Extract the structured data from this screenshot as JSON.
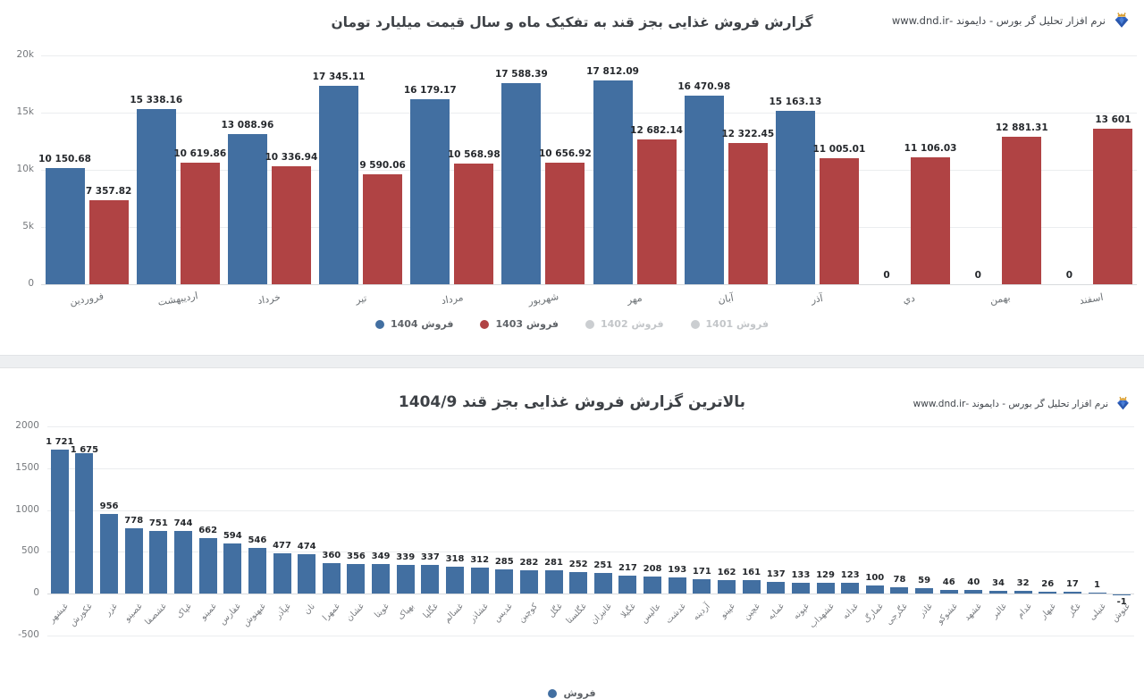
{
  "header": {
    "brand_text": "نرم افزار تحلیل گر بورس - دایموند -www.dnd.ir",
    "logo_icon": "diamond-crown-logo",
    "logo_colors": {
      "diamond": "#2f63c4",
      "crown": "#d79c2e"
    }
  },
  "chart_data": [
    {
      "type": "bar",
      "title": "گزارش فروش غذایی بجز قند به تفکیک ماه و سال قیمت میلیارد تومان",
      "categories": [
        "فروردین",
        "اردیبهشت",
        "خرداد",
        "تیر",
        "مرداد",
        "شهریور",
        "مهر",
        "آبان",
        "آذر",
        "دي",
        "بهمن",
        "اسفند"
      ],
      "series": [
        {
          "name": "فروش 1404",
          "color": "#426fa1",
          "values": [
            10150.68,
            15338.16,
            13088.96,
            17345.11,
            16179.17,
            17588.39,
            17812.09,
            16470.98,
            15163.13,
            0,
            0,
            0
          ],
          "labels": [
            "10 150.68",
            "15 338.16",
            "13 088.96",
            "17 345.11",
            "16 179.17",
            "17 588.39",
            "17 812.09",
            "16 470.98",
            "15 163.13",
            "0",
            "0",
            "0"
          ]
        },
        {
          "name": "فروش 1403",
          "color": "#b04344",
          "values": [
            7357.82,
            10619.86,
            10336.94,
            9590.06,
            10568.98,
            10656.92,
            12682.14,
            12322.45,
            11005.01,
            11106.03,
            12881.31,
            13601
          ],
          "labels": [
            "7 357.82",
            "10 619.86",
            "10 336.94",
            "9 590.06",
            "10 568.98",
            "10 656.92",
            "12 682.14",
            "12 322.45",
            "11 005.01",
            "11 106.03",
            "12 881.31",
            "13 601"
          ]
        }
      ],
      "legend": [
        {
          "label": "فروش 1404",
          "color": "#426fa1",
          "active": true
        },
        {
          "label": "فروش 1403",
          "color": "#b04344",
          "active": true
        },
        {
          "label": "فروش 1402",
          "color": "#cbced1",
          "active": false
        },
        {
          "label": "فروش 1401",
          "color": "#cbced1",
          "active": false
        }
      ],
      "y_ticks": [
        {
          "label": "20k",
          "value": 20000
        },
        {
          "label": "15k",
          "value": 15000
        },
        {
          "label": "10k",
          "value": 10000
        },
        {
          "label": "5k",
          "value": 5000
        },
        {
          "label": "0",
          "value": 0
        }
      ],
      "ylim": [
        0,
        20000
      ],
      "grid": true,
      "legend_position": "bottom",
      "x_label_rotation_deg": 10
    },
    {
      "type": "bar",
      "title": "بالاترین گزارش فروش غذایی بجز قند 1404/9",
      "series_name": "فروش",
      "bar_color": "#426fa1",
      "categories": [
        "غبشهر",
        "غکورش",
        "غزر",
        "غصینو",
        "غشصفا",
        "غپاک",
        "غمینو",
        "غفارس",
        "غبهنوش",
        "غپآذر",
        "نان",
        "غمهرا",
        "غشان",
        "غویتا",
        "بهپاک",
        "غگلپا",
        "غسالم",
        "غشاذر",
        "غدیس",
        "کوچین",
        "غگل",
        "غگلستا",
        "غانیزان",
        "غگیلا",
        "عالیس",
        "غدشت",
        "آردینه",
        "غپینو",
        "غچین",
        "غمایه",
        "غپونه",
        "غشهداب",
        "غدانه",
        "غمارگ",
        "غگرجی",
        "غاذر",
        "غشوکو",
        "غشهد",
        "غالبر",
        "غدام",
        "غبهار",
        "غگز",
        "غنیلی",
        "غنوش"
      ],
      "values": [
        1721,
        1675,
        956,
        778,
        751,
        744,
        662,
        594,
        546,
        477,
        474,
        360,
        356,
        349,
        339,
        337,
        318,
        312,
        285,
        282,
        281,
        252,
        251,
        217,
        208,
        193,
        171,
        162,
        161,
        137,
        133,
        129,
        123,
        100,
        78,
        59,
        46,
        40,
        34,
        32,
        26,
        17,
        1,
        -1
      ],
      "labels": [
        "1 721",
        "1 675",
        "956",
        "778",
        "751",
        "744",
        "662",
        "594",
        "546",
        "477",
        "474",
        "360",
        "356",
        "349",
        "339",
        "337",
        "318",
        "312",
        "285",
        "282",
        "281",
        "252",
        "251",
        "217",
        "208",
        "193",
        "171",
        "162",
        "161",
        "137",
        "133",
        "129",
        "123",
        "100",
        "78",
        "59",
        "46",
        "40",
        "34",
        "32",
        "26",
        "17",
        "1",
        "-1"
      ],
      "y_ticks": [
        {
          "label": "2000",
          "value": 2000
        },
        {
          "label": "1500",
          "value": 1500
        },
        {
          "label": "1000",
          "value": 1000
        },
        {
          "label": "500",
          "value": 500
        },
        {
          "label": "0",
          "value": 0
        },
        {
          "label": "-500",
          "value": -500
        }
      ],
      "ylim": [
        -500,
        2000
      ],
      "grid": true,
      "legend_position": "bottom",
      "x_label_rotation_deg": 45
    }
  ]
}
